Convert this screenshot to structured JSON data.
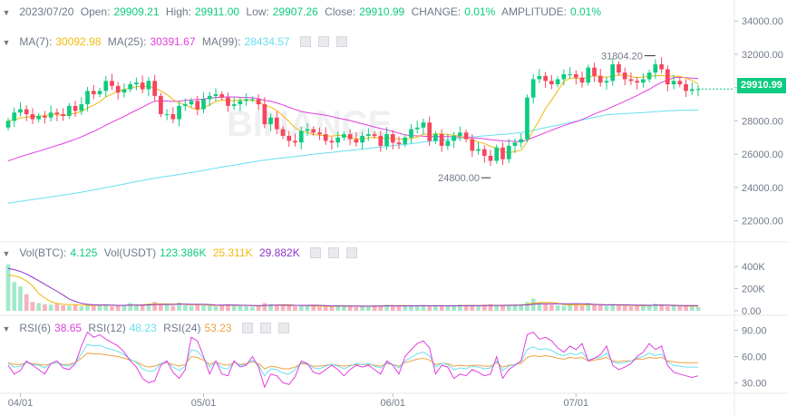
{
  "header": {
    "date": "2023/07/20",
    "open_label": "Open:",
    "open": "29909.21",
    "high_label": "High:",
    "high": "29911.00",
    "low_label": "Low:",
    "low": "29907.26",
    "close_label": "Close:",
    "close": "29910.99",
    "change_label": "CHANGE:",
    "change": "0.01%",
    "amplitude_label": "AMPLITUDE:",
    "amplitude": "0.01%"
  },
  "ma_legend": {
    "ma7_label": "MA(7):",
    "ma7": "30092.98",
    "ma25_label": "MA(25):",
    "ma25": "30391.67",
    "ma99_label": "MA(99):",
    "ma99": "28434.57"
  },
  "vol_legend": {
    "btc_label": "Vol(BTC):",
    "btc": "4.125",
    "usdt_label": "Vol(USDT)",
    "usdt": "123.386K",
    "v1": "25.311K",
    "v2": "29.882K"
  },
  "rsi_legend": {
    "r6_label": "RSI(6)",
    "r6": "38.65",
    "r12_label": "RSI(12)",
    "r12": "48.23",
    "r24_label": "RSI(24)",
    "r24": "53.23"
  },
  "last_price": "29910.99",
  "watermark": "BINANCE",
  "colors": {
    "up": "#0ecb81",
    "down": "#f6465d",
    "ma7": "#f0b90b",
    "ma25": "#e13ee0",
    "ma99": "#68e0f0",
    "rsi6": "#e13ee0",
    "rsi12": "#68e0f0",
    "rsi24": "#f0a040"
  },
  "chart_data": {
    "type": "candlestick",
    "price_axis": {
      "min": 21000,
      "max": 34500,
      "ticks": [
        "34000.00",
        "32000.00",
        "30000.00",
        "28000.00",
        "26000.00",
        "24000.00",
        "22000.00"
      ]
    },
    "volume_axis": {
      "ticks": [
        "400K",
        "200K",
        "0.00"
      ]
    },
    "rsi_axis": {
      "min": 20,
      "max": 100,
      "ticks": [
        "90.00",
        "60.00",
        "30.00"
      ]
    },
    "x_ticks": [
      {
        "label": "04/01",
        "index": 2
      },
      {
        "label": "05/01",
        "index": 32
      },
      {
        "label": "06/01",
        "index": 63
      },
      {
        "label": "07/01",
        "index": 93
      }
    ],
    "annotations": [
      {
        "label": "31804.20",
        "index": 106,
        "value": 31804.2
      },
      {
        "label": "24800.00",
        "index": 79,
        "value": 24800
      }
    ],
    "closes": [
      28000,
      28500,
      28700,
      28400,
      28100,
      28300,
      28200,
      28500,
      28400,
      28300,
      28900,
      28600,
      29000,
      29800,
      29600,
      29800,
      30400,
      30100,
      29700,
      29900,
      30200,
      30300,
      29900,
      30400,
      29500,
      28400,
      28400,
      28100,
      28900,
      29000,
      29200,
      28700,
      29300,
      29500,
      29600,
      29400,
      28900,
      29000,
      29200,
      29300,
      29300,
      29000,
      27800,
      28200,
      27500,
      27100,
      26800,
      26700,
      27400,
      27500,
      27300,
      27200,
      26800,
      26700,
      27000,
      27200,
      26900,
      26700,
      27100,
      27200,
      27100,
      26500,
      27200,
      26700,
      26600,
      27000,
      27500,
      27600,
      27900,
      26800,
      27200,
      26500,
      26800,
      27100,
      27300,
      26900,
      26200,
      26300,
      25900,
      25600,
      26400,
      25700,
      26500,
      26700,
      26900,
      29400,
      30500,
      30700,
      30400,
      30200,
      30500,
      30800,
      30800,
      30600,
      30300,
      31200,
      30700,
      30300,
      30400,
      31400,
      30900,
      30500,
      30400,
      30300,
      30500,
      30900,
      31400,
      31100,
      30200,
      30400,
      30200,
      29800,
      29900,
      29911
    ],
    "volumes": [
      420,
      260,
      220,
      150,
      80,
      70,
      60,
      55,
      65,
      50,
      45,
      60,
      40,
      55,
      45,
      50,
      60,
      40,
      45,
      50,
      70,
      55,
      50,
      65,
      80,
      60,
      55,
      45,
      75,
      50,
      45,
      60,
      50,
      45,
      40,
      55,
      60,
      45,
      50,
      40,
      35,
      45,
      70,
      60,
      50,
      55,
      45,
      40,
      50,
      45,
      40,
      35,
      45,
      40,
      50,
      45,
      40,
      35,
      45,
      40,
      50,
      45,
      55,
      40,
      45,
      50,
      40,
      45,
      50,
      40,
      45,
      50,
      40,
      45,
      55,
      50,
      45,
      40,
      55,
      60,
      45,
      50,
      45,
      55,
      60,
      80,
      110,
      70,
      60,
      55,
      50,
      45,
      55,
      60,
      50,
      70,
      55,
      50,
      45,
      60,
      50,
      45,
      40,
      45,
      50,
      55,
      65,
      50,
      40,
      45,
      40,
      45,
      40,
      35
    ],
    "rsi6": [
      50,
      40,
      44,
      55,
      50,
      45,
      40,
      52,
      55,
      47,
      45,
      52,
      72,
      88,
      82,
      85,
      80,
      76,
      72,
      65,
      55,
      48,
      35,
      30,
      32,
      50,
      55,
      42,
      35,
      45,
      82,
      78,
      60,
      40,
      55,
      40,
      38,
      55,
      48,
      50,
      60,
      48,
      25,
      40,
      38,
      30,
      28,
      37,
      55,
      52,
      42,
      40,
      45,
      50,
      45,
      38,
      45,
      50,
      48,
      50,
      45,
      40,
      55,
      50,
      40,
      60,
      68,
      75,
      78,
      70,
      40,
      50,
      48,
      35,
      40,
      38,
      45,
      42,
      38,
      40,
      60,
      35,
      45,
      50,
      55,
      85,
      88,
      80,
      82,
      78,
      70,
      65,
      72,
      68,
      75,
      55,
      58,
      62,
      72,
      50,
      45,
      48,
      52,
      60,
      65,
      75,
      68,
      72,
      50,
      42,
      40,
      38,
      36,
      38
    ],
    "rsi12": [
      52,
      48,
      49,
      53,
      51,
      50,
      47,
      52,
      53,
      50,
      49,
      53,
      63,
      74,
      72,
      73,
      70,
      68,
      66,
      62,
      57,
      53,
      46,
      43,
      44,
      52,
      54,
      48,
      44,
      49,
      68,
      66,
      58,
      48,
      54,
      47,
      46,
      54,
      50,
      51,
      56,
      50,
      38,
      46,
      45,
      41,
      40,
      45,
      53,
      52,
      47,
      46,
      49,
      51,
      49,
      46,
      49,
      52,
      51,
      52,
      49,
      47,
      53,
      51,
      47,
      55,
      59,
      63,
      65,
      61,
      48,
      52,
      51,
      45,
      47,
      46,
      49,
      48,
      46,
      47,
      55,
      44,
      49,
      51,
      54,
      68,
      71,
      68,
      69,
      67,
      63,
      61,
      64,
      62,
      65,
      56,
      58,
      59,
      64,
      54,
      52,
      53,
      55,
      58,
      60,
      64,
      61,
      63,
      54,
      50,
      49,
      48,
      48,
      48
    ],
    "rsi24": [
      53,
      51,
      51,
      53,
      52,
      51,
      50,
      52,
      53,
      51,
      51,
      53,
      58,
      64,
      63,
      63,
      62,
      61,
      60,
      58,
      56,
      54,
      50,
      48,
      49,
      52,
      53,
      51,
      49,
      51,
      60,
      59,
      56,
      51,
      54,
      51,
      50,
      53,
      51,
      52,
      54,
      52,
      46,
      49,
      48,
      46,
      46,
      48,
      52,
      51,
      49,
      49,
      50,
      51,
      50,
      49,
      50,
      51,
      51,
      51,
      50,
      49,
      52,
      51,
      49,
      53,
      55,
      57,
      58,
      56,
      51,
      52,
      52,
      49,
      50,
      49,
      50,
      50,
      49,
      49,
      53,
      48,
      50,
      51,
      52,
      59,
      61,
      60,
      61,
      60,
      58,
      57,
      59,
      58,
      59,
      55,
      56,
      57,
      59,
      55,
      54,
      55,
      55,
      57,
      57,
      59,
      58,
      59,
      55,
      54,
      53,
      53,
      53,
      53
    ]
  }
}
